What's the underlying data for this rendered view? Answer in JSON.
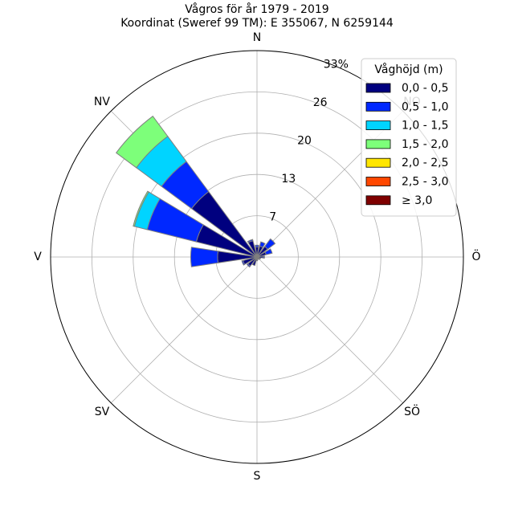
{
  "chart_data": {
    "type": "windrose",
    "title": "Vågros för år 1979 - 2019",
    "subtitle": "Koordinat (Sweref 99 TM): E 355067, N 6259144",
    "directions": [
      "N",
      "NO",
      "Ö",
      "SÖ",
      "S",
      "SV",
      "V",
      "NV"
    ],
    "radial_ticks": [
      "7",
      "13",
      "20",
      "26",
      "33%"
    ],
    "radial_tick_values": [
      6.6,
      13.2,
      19.8,
      26.4,
      33
    ],
    "r_max": 33,
    "legend_title": "Våghöjd (m)",
    "legend_placement": "top-right",
    "bins": [
      {
        "label": "0,0 - 0,5",
        "color": "#00007f"
      },
      {
        "label": "0,5 - 1,0",
        "color": "#0028ff"
      },
      {
        "label": "1,0 - 1,5",
        "color": "#00d4ff"
      },
      {
        "label": "1,5 - 2,0",
        "color": "#7dff7a"
      },
      {
        "label": "2,0 - 2,5",
        "color": "#ffe600"
      },
      {
        "label": "2,5 - 3,0",
        "color": "#ff4700"
      },
      {
        "label": "≥ 3,0",
        "color": "#7f0000"
      }
    ],
    "sector_angles": [
      0,
      22.5,
      45,
      67.5,
      90,
      112.5,
      135,
      157.5,
      180,
      202.5,
      225,
      247.5,
      270,
      292.5,
      315,
      337.5
    ],
    "sector_cumulative": [
      [
        1.6,
        1.9
      ],
      [
        1.8,
        2.5
      ],
      [
        2.1,
        3.6
      ],
      [
        1.5,
        2.5
      ],
      [
        1.0,
        1.2
      ],
      [
        0.6,
        0.6
      ],
      [
        0.5,
        0.5
      ],
      [
        0.4,
        0.4
      ],
      [
        0.6,
        0.6
      ],
      [
        1.4,
        1.4
      ],
      [
        1.8,
        2.0
      ],
      [
        2.3,
        2.5
      ],
      [
        6.3,
        10.6
      ],
      [
        10.0,
        18.1,
        20.2,
        20.4
      ],
      [
        13.0,
        19.0,
        24.0,
        28.0
      ],
      [
        2.7,
        2.9
      ]
    ]
  }
}
